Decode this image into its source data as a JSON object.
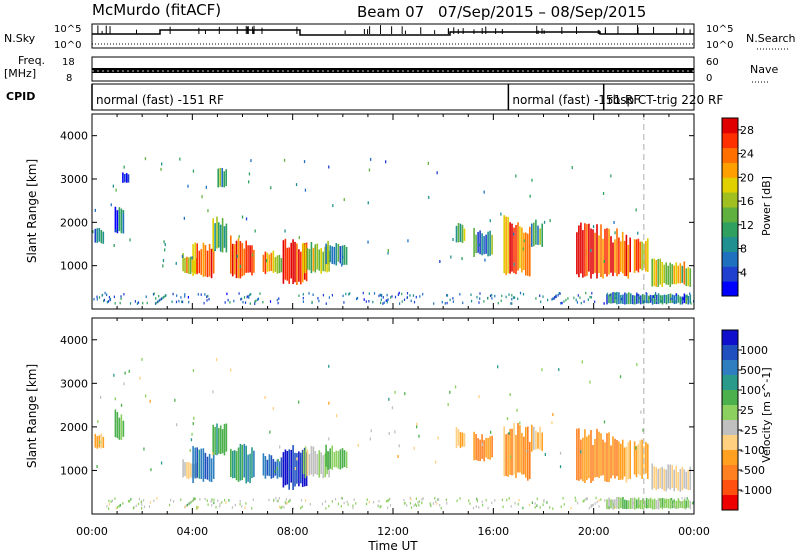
{
  "header": {
    "radar": "McMurdo (fitACF)",
    "beam_label": "Beam 07",
    "date_range": "07/Sep/2015 – 08/Sep/2015"
  },
  "top_panels": {
    "nsky_label": "N.Sky",
    "nsky_ticks": [
      "10^5",
      "10^0"
    ],
    "nsearch_label": "N.Search",
    "nsearch_ticks": [
      "10^5",
      "10^0"
    ],
    "freq_label_1": "Freq.",
    "freq_label_2": "[MHz]",
    "freq_ticks": [
      "18",
      "8"
    ],
    "nave_label": "Nave",
    "nave_ticks": [
      "60",
      "0"
    ],
    "cpid_label": "CPID",
    "cpid_segments": [
      {
        "start_hr": 0.0,
        "end_hr": 16.6,
        "label": "normal (fast) -151 RF"
      },
      {
        "start_hr": 16.6,
        "end_hr": 20.4,
        "label": "normal (fast) -151 RF"
      },
      {
        "start_hr": 20.4,
        "end_hr": 24.0,
        "label": "rbsp CT-trig 220 RF"
      }
    ]
  },
  "colors": {
    "power_scale": [
      "#0000ff",
      "#2040d0",
      "#2070c0",
      "#209090",
      "#30a060",
      "#60b040",
      "#a0c020",
      "#e0d000",
      "#ffa000",
      "#ff7000",
      "#ff3000",
      "#e00000"
    ],
    "velocity_scale": [
      "#1010cc",
      "#2050c0",
      "#2f7fc0",
      "#2a9a8a",
      "#4cb04c",
      "#8cd060",
      "#c0c0c0",
      "#ffd080",
      "#ffa020",
      "#ff8020",
      "#ff5010",
      "#ee0000"
    ],
    "marker_line": "#b0b0b0"
  },
  "x_axis": {
    "label": "Time UT",
    "tick_labels": [
      "00:00",
      "04:00",
      "08:00",
      "12:00",
      "16:00",
      "20:00",
      "00:00"
    ]
  },
  "chart_data": [
    {
      "type": "heatmap",
      "title": "",
      "xlabel": "Time UT",
      "ylabel": "Slant Range [km]",
      "xlim_hours": [
        0,
        24
      ],
      "ylim": [
        0,
        4500
      ],
      "yticks": [
        1000,
        2000,
        3000,
        4000
      ],
      "colorbar": {
        "label": "Power [dB]",
        "ticks": [
          4,
          8,
          12,
          16,
          20,
          24,
          28
        ],
        "range": [
          0,
          30
        ]
      },
      "dashed_marker_hr": 22.0,
      "grid": false,
      "echo_regions": [
        {
          "t_start": 0.1,
          "t_end": 0.5,
          "r_min": 1500,
          "r_max": 1900,
          "power": 8
        },
        {
          "t_start": 0.9,
          "t_end": 1.3,
          "r_min": 1700,
          "r_max": 2400,
          "power": 6
        },
        {
          "t_start": 1.2,
          "t_end": 1.5,
          "r_min": 2900,
          "r_max": 3200,
          "power": 6
        },
        {
          "t_start": 3.6,
          "t_end": 4.2,
          "r_min": 800,
          "r_max": 1300,
          "power": 20
        },
        {
          "t_start": 4.0,
          "t_end": 4.9,
          "r_min": 700,
          "r_max": 1600,
          "power": 22
        },
        {
          "t_start": 4.8,
          "t_end": 5.4,
          "r_min": 1300,
          "r_max": 2200,
          "power": 14
        },
        {
          "t_start": 5.0,
          "t_end": 5.4,
          "r_min": 2800,
          "r_max": 3300,
          "power": 12
        },
        {
          "t_start": 5.5,
          "t_end": 6.5,
          "r_min": 700,
          "r_max": 1700,
          "power": 24
        },
        {
          "t_start": 6.8,
          "t_end": 7.6,
          "r_min": 800,
          "r_max": 1400,
          "power": 20
        },
        {
          "t_start": 7.6,
          "t_end": 8.6,
          "r_min": 550,
          "r_max": 1700,
          "power": 28
        },
        {
          "t_start": 8.4,
          "t_end": 9.5,
          "r_min": 800,
          "r_max": 1600,
          "power": 16
        },
        {
          "t_start": 9.3,
          "t_end": 10.2,
          "r_min": 1000,
          "r_max": 1600,
          "power": 10
        },
        {
          "t_start": 14.5,
          "t_end": 14.9,
          "r_min": 1500,
          "r_max": 2000,
          "power": 14
        },
        {
          "t_start": 15.2,
          "t_end": 16.0,
          "r_min": 1200,
          "r_max": 1900,
          "power": 10
        },
        {
          "t_start": 16.4,
          "t_end": 17.5,
          "r_min": 750,
          "r_max": 2200,
          "power": 24
        },
        {
          "t_start": 17.5,
          "t_end": 18.0,
          "r_min": 1400,
          "r_max": 2100,
          "power": 12
        },
        {
          "t_start": 19.3,
          "t_end": 20.1,
          "r_min": 650,
          "r_max": 2100,
          "power": 28
        },
        {
          "t_start": 20.1,
          "t_end": 20.9,
          "r_min": 700,
          "r_max": 2000,
          "power": 26
        },
        {
          "t_start": 20.9,
          "t_end": 21.5,
          "r_min": 700,
          "r_max": 1900,
          "power": 24
        },
        {
          "t_start": 21.6,
          "t_end": 22.2,
          "r_min": 800,
          "r_max": 1800,
          "power": 22
        },
        {
          "t_start": 22.3,
          "t_end": 23.9,
          "r_min": 500,
          "r_max": 1200,
          "power": 18
        },
        {
          "t_start": 20.5,
          "t_end": 23.9,
          "r_min": 100,
          "r_max": 400,
          "power": 8
        }
      ]
    },
    {
      "type": "heatmap",
      "title": "",
      "xlabel": "Time UT",
      "ylabel": "Slant Range [km]",
      "xlim_hours": [
        0,
        24
      ],
      "ylim": [
        0,
        4500
      ],
      "yticks": [
        1000,
        2000,
        3000,
        4000
      ],
      "colorbar": {
        "label": "Velocity [m s^-1]",
        "ticks": [
          1000,
          500,
          100,
          25,
          -25,
          -100,
          -500,
          -1000
        ],
        "range": [
          -1000,
          1000
        ]
      },
      "dashed_marker_hr": 22.0,
      "grid": false,
      "echo_regions": [
        {
          "t_start": 0.1,
          "t_end": 0.5,
          "r_min": 1500,
          "r_max": 1900,
          "velocity": -300
        },
        {
          "t_start": 0.9,
          "t_end": 1.3,
          "r_min": 1700,
          "r_max": 2400,
          "velocity": 200
        },
        {
          "t_start": 3.6,
          "t_end": 4.2,
          "r_min": 800,
          "r_max": 1300,
          "velocity": -80
        },
        {
          "t_start": 4.0,
          "t_end": 4.9,
          "r_min": 700,
          "r_max": 1600,
          "velocity": 600
        },
        {
          "t_start": 4.8,
          "t_end": 5.4,
          "r_min": 1300,
          "r_max": 2200,
          "velocity": 300
        },
        {
          "t_start": 5.5,
          "t_end": 6.5,
          "r_min": 700,
          "r_max": 1700,
          "velocity": 400
        },
        {
          "t_start": 6.8,
          "t_end": 7.6,
          "r_min": 800,
          "r_max": 1400,
          "velocity": 700
        },
        {
          "t_start": 7.6,
          "t_end": 8.6,
          "r_min": 550,
          "r_max": 1700,
          "velocity": 900
        },
        {
          "t_start": 8.4,
          "t_end": 9.5,
          "r_min": 800,
          "r_max": 1600,
          "velocity": -60
        },
        {
          "t_start": 9.3,
          "t_end": 10.2,
          "r_min": 1000,
          "r_max": 1600,
          "velocity": 200
        },
        {
          "t_start": 14.5,
          "t_end": 14.9,
          "r_min": 1500,
          "r_max": 2000,
          "velocity": -400
        },
        {
          "t_start": 15.2,
          "t_end": 16.0,
          "r_min": 1200,
          "r_max": 1900,
          "velocity": -500
        },
        {
          "t_start": 16.4,
          "t_end": 17.5,
          "r_min": 750,
          "r_max": 2200,
          "velocity": -450
        },
        {
          "t_start": 17.5,
          "t_end": 18.0,
          "r_min": 1400,
          "r_max": 2100,
          "velocity": -300
        },
        {
          "t_start": 19.3,
          "t_end": 20.1,
          "r_min": 650,
          "r_max": 2100,
          "velocity": -500
        },
        {
          "t_start": 20.1,
          "t_end": 20.9,
          "r_min": 700,
          "r_max": 2000,
          "velocity": -450
        },
        {
          "t_start": 20.9,
          "t_end": 21.5,
          "r_min": 700,
          "r_max": 1900,
          "velocity": -400
        },
        {
          "t_start": 21.6,
          "t_end": 22.2,
          "r_min": 800,
          "r_max": 1800,
          "velocity": -350
        },
        {
          "t_start": 22.3,
          "t_end": 23.9,
          "r_min": 500,
          "r_max": 1200,
          "velocity": -150
        },
        {
          "t_start": 20.5,
          "t_end": 23.9,
          "r_min": 100,
          "r_max": 400,
          "velocity": 80
        }
      ]
    }
  ]
}
